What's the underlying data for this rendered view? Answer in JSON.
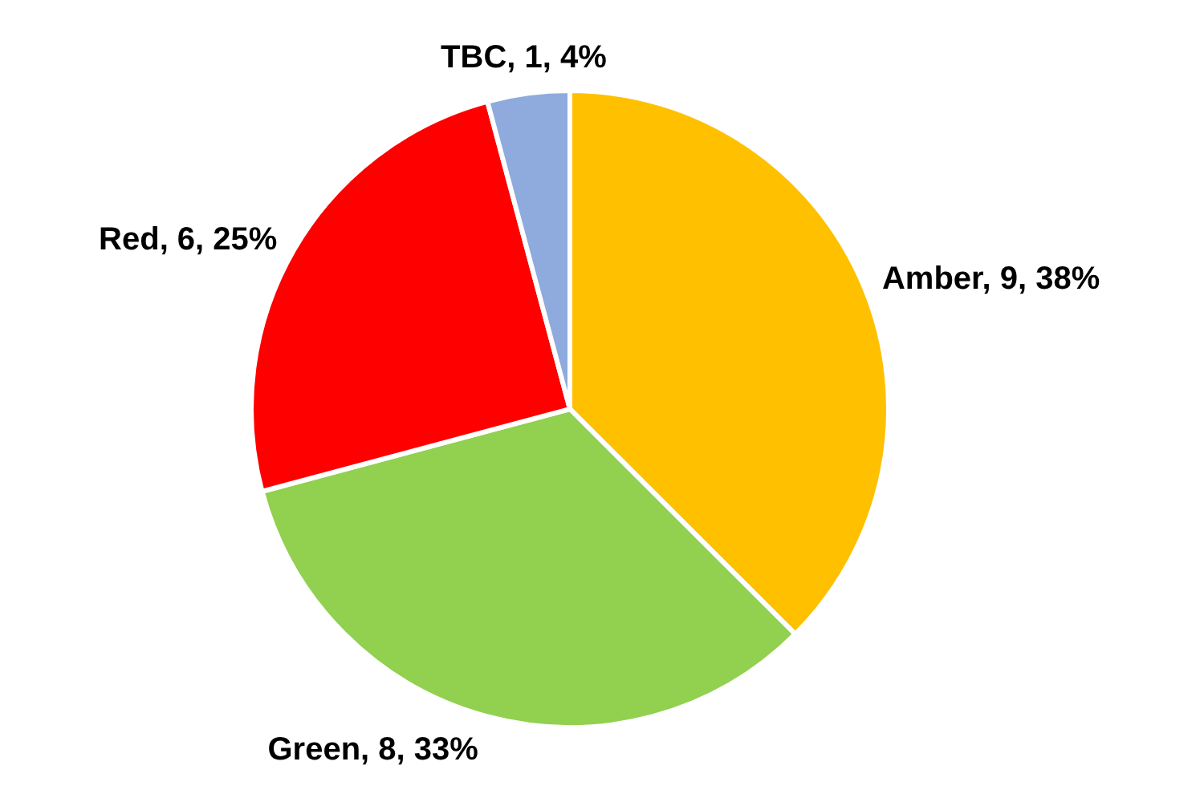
{
  "chart_data": {
    "type": "pie",
    "categories": [
      "Amber",
      "Green",
      "Red",
      "TBC"
    ],
    "values": [
      9,
      8,
      6,
      1
    ],
    "value_labels": [
      "9, 38%",
      "8, 33%",
      "6, 25%",
      "1, 4%"
    ],
    "colors": [
      "#ffc000",
      "#92d050",
      "#ff0000",
      "#8faadc"
    ],
    "legend": false
  }
}
